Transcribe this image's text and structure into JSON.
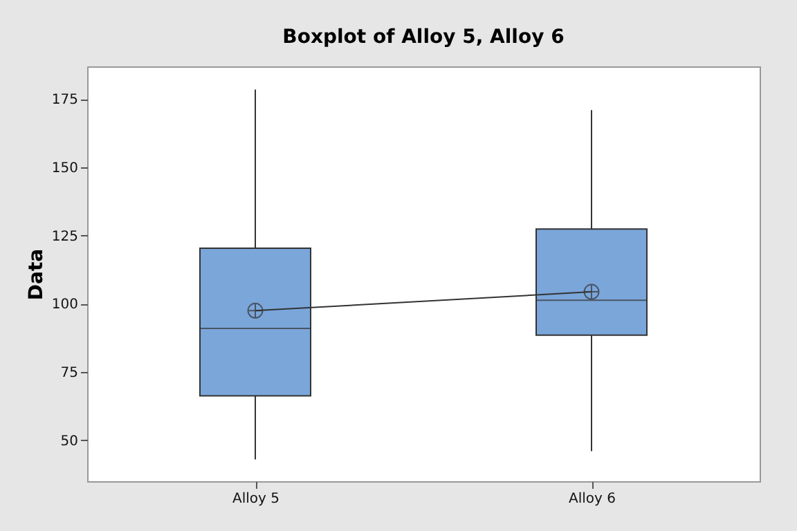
{
  "chart_data": {
    "type": "box",
    "title": "Boxplot of Alloy 5, Alloy 6",
    "ylabel": "Data",
    "categories": [
      "Alloy 5",
      "Alloy 6"
    ],
    "color": "#7ba6da",
    "boxes": [
      {
        "low": 43,
        "q1": 66.3,
        "median": 91,
        "q3": 120.4,
        "high": 178.5,
        "mean": 97.5
      },
      {
        "low": 46,
        "q1": 88.5,
        "median": 101.3,
        "q3": 127.4,
        "high": 171,
        "mean": 104.4
      }
    ],
    "series": [
      {
        "type": "line",
        "color": "#333333",
        "values": [
          97.5,
          104.4
        ]
      }
    ],
    "ylim": [
      35,
      187
    ],
    "yticks": [
      50,
      75,
      100,
      125,
      150,
      175
    ],
    "grid": false
  }
}
